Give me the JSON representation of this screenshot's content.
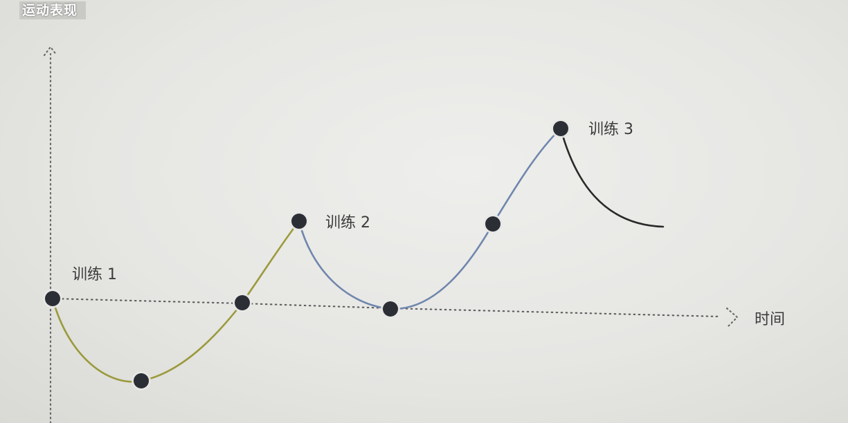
{
  "caption": "运动表现",
  "axis": {
    "x_label": "时间"
  },
  "labels": {
    "training_1": "训练 1",
    "training_2": "训练 2",
    "training_3": "训练 3"
  },
  "colors": {
    "phase_1": "#9a9a3c",
    "phase_2": "#6f86ad",
    "phase_3": "#2a2a2a",
    "point": "#2b2e35",
    "axis": "#555555"
  }
}
